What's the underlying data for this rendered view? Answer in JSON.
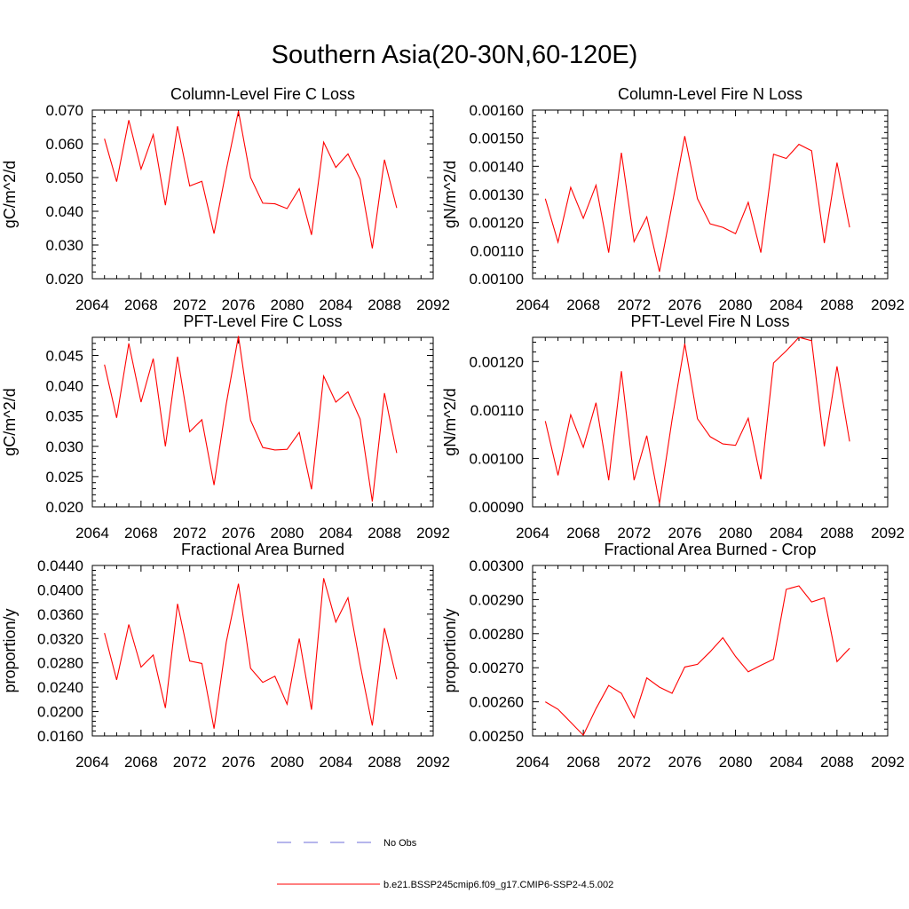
{
  "figure": {
    "title": "Southern Asia(20-30N,60-120E)",
    "legend": [
      {
        "label": "No Obs",
        "color": "#6c6cd9",
        "style": "dashed"
      },
      {
        "label": "b.e21.BSSP245cmip6.f09_g17.CMIP6-SSP2-4.5.002",
        "color": "#ff0000",
        "style": "solid"
      }
    ]
  },
  "chart_data": [
    {
      "type": "line",
      "title": "Column-Level Fire C Loss",
      "ylabel": "gC/m^2/d",
      "xlim": [
        2064,
        2092
      ],
      "xticks": [
        2064,
        2068,
        2072,
        2076,
        2080,
        2084,
        2088,
        2092
      ],
      "ylim": [
        0.02,
        0.07
      ],
      "yticks": [
        "0.020",
        "0.030",
        "0.040",
        "0.050",
        "0.060",
        "0.070"
      ],
      "x": [
        2065,
        2066,
        2067,
        2068,
        2069,
        2070,
        2071,
        2072,
        2073,
        2074,
        2075,
        2076,
        2077,
        2078,
        2079,
        2080,
        2081,
        2082,
        2083,
        2084,
        2085,
        2086,
        2087,
        2088,
        2089
      ],
      "series": [
        {
          "color": "#ff0000",
          "values": [
            0.0615,
            0.0488,
            0.067,
            0.0525,
            0.0627,
            0.0418,
            0.0652,
            0.0475,
            0.0489,
            0.0334,
            0.0523,
            0.0697,
            0.05,
            0.0424,
            0.0422,
            0.0408,
            0.0467,
            0.033,
            0.0605,
            0.053,
            0.057,
            0.0495,
            0.029,
            0.0553,
            0.041
          ]
        }
      ]
    },
    {
      "type": "line",
      "title": "Column-Level Fire N Loss",
      "ylabel": "gN/m^2/d",
      "xlim": [
        2064,
        2092
      ],
      "xticks": [
        2064,
        2068,
        2072,
        2076,
        2080,
        2084,
        2088,
        2092
      ],
      "ylim": [
        0.001,
        0.0016
      ],
      "yticks": [
        "0.00100",
        "0.00110",
        "0.00120",
        "0.00130",
        "0.00140",
        "0.00150",
        "0.00160"
      ],
      "x": [
        2065,
        2066,
        2067,
        2068,
        2069,
        2070,
        2071,
        2072,
        2073,
        2074,
        2075,
        2076,
        2077,
        2078,
        2079,
        2080,
        2081,
        2082,
        2083,
        2084,
        2085,
        2086,
        2087,
        2088,
        2089
      ],
      "series": [
        {
          "color": "#ff0000",
          "values": [
            0.001285,
            0.00113,
            0.001325,
            0.001215,
            0.001333,
            0.001093,
            0.001448,
            0.001132,
            0.00122,
            0.001025,
            0.001262,
            0.001507,
            0.001285,
            0.001195,
            0.001183,
            0.00116,
            0.001272,
            0.001093,
            0.001443,
            0.001428,
            0.001478,
            0.001455,
            0.001127,
            0.001413,
            0.001183
          ]
        }
      ]
    },
    {
      "type": "line",
      "title": "PFT-Level Fire C Loss",
      "ylabel": "gC/m^2/d",
      "xlim": [
        2064,
        2092
      ],
      "xticks": [
        2064,
        2068,
        2072,
        2076,
        2080,
        2084,
        2088,
        2092
      ],
      "ylim": [
        0.02,
        0.048
      ],
      "yticks": [
        "0.020",
        "0.025",
        "0.030",
        "0.035",
        "0.040",
        "0.045"
      ],
      "x": [
        2065,
        2066,
        2067,
        2068,
        2069,
        2070,
        2071,
        2072,
        2073,
        2074,
        2075,
        2076,
        2077,
        2078,
        2079,
        2080,
        2081,
        2082,
        2083,
        2084,
        2085,
        2086,
        2087,
        2088,
        2089
      ],
      "series": [
        {
          "color": "#ff0000",
          "values": [
            0.0435,
            0.0347,
            0.047,
            0.0373,
            0.0445,
            0.03,
            0.0448,
            0.0324,
            0.0344,
            0.0236,
            0.037,
            0.0482,
            0.0343,
            0.0298,
            0.0294,
            0.0295,
            0.0323,
            0.0229,
            0.0416,
            0.0373,
            0.039,
            0.0345,
            0.0209,
            0.0388,
            0.0289
          ]
        }
      ]
    },
    {
      "type": "line",
      "title": "PFT-Level Fire N Loss",
      "ylabel": "gN/m^2/d",
      "xlim": [
        2064,
        2092
      ],
      "xticks": [
        2064,
        2068,
        2072,
        2076,
        2080,
        2084,
        2088,
        2092
      ],
      "ylim": [
        0.0009,
        0.00125
      ],
      "yticks": [
        "0.00090",
        "0.00100",
        "0.00110",
        "0.00120"
      ],
      "x": [
        2065,
        2066,
        2067,
        2068,
        2069,
        2070,
        2071,
        2072,
        2073,
        2074,
        2075,
        2076,
        2077,
        2078,
        2079,
        2080,
        2081,
        2082,
        2083,
        2084,
        2085,
        2086,
        2087,
        2088,
        2089
      ],
      "series": [
        {
          "color": "#ff0000",
          "values": [
            0.001077,
            0.000965,
            0.00109,
            0.001023,
            0.001115,
            0.000955,
            0.00118,
            0.000955,
            0.001047,
            0.000907,
            0.00108,
            0.001237,
            0.001082,
            0.001045,
            0.00103,
            0.001027,
            0.001083,
            0.000957,
            0.001197,
            0.001222,
            0.00125,
            0.001243,
            0.001025,
            0.00119,
            0.001035
          ]
        }
      ]
    },
    {
      "type": "line",
      "title": "Fractional Area Burned",
      "ylabel": "proportion/y",
      "xlim": [
        2064,
        2092
      ],
      "xticks": [
        2064,
        2068,
        2072,
        2076,
        2080,
        2084,
        2088,
        2092
      ],
      "ylim": [
        0.016,
        0.044
      ],
      "yticks": [
        "0.0160",
        "0.0200",
        "0.0240",
        "0.0280",
        "0.0320",
        "0.0360",
        "0.0400",
        "0.0440"
      ],
      "x": [
        2065,
        2066,
        2067,
        2068,
        2069,
        2070,
        2071,
        2072,
        2073,
        2074,
        2075,
        2076,
        2077,
        2078,
        2079,
        2080,
        2081,
        2082,
        2083,
        2084,
        2085,
        2086,
        2087,
        2088,
        2089
      ],
      "series": [
        {
          "color": "#ff0000",
          "values": [
            0.0329,
            0.0252,
            0.0343,
            0.0273,
            0.0293,
            0.0206,
            0.0377,
            0.0283,
            0.0279,
            0.0172,
            0.0314,
            0.041,
            0.0271,
            0.0248,
            0.0258,
            0.0212,
            0.032,
            0.0203,
            0.0419,
            0.0347,
            0.0387,
            0.0277,
            0.0177,
            0.0337,
            0.0253
          ]
        }
      ]
    },
    {
      "type": "line",
      "title": "Fractional Area Burned - Crop",
      "ylabel": "proportion/y",
      "xlim": [
        2064,
        2092
      ],
      "xticks": [
        2064,
        2068,
        2072,
        2076,
        2080,
        2084,
        2088,
        2092
      ],
      "ylim": [
        0.0025,
        0.003
      ],
      "yticks": [
        "0.00250",
        "0.00260",
        "0.00270",
        "0.00280",
        "0.00290",
        "0.00300"
      ],
      "x": [
        2065,
        2066,
        2067,
        2068,
        2069,
        2070,
        2071,
        2072,
        2073,
        2074,
        2075,
        2076,
        2077,
        2078,
        2079,
        2080,
        2081,
        2082,
        2083,
        2084,
        2085,
        2086,
        2087,
        2088,
        2089
      ],
      "series": [
        {
          "color": "#ff0000",
          "values": [
            0.0026,
            0.002578,
            0.00254,
            0.002502,
            0.00258,
            0.002648,
            0.002625,
            0.002553,
            0.00267,
            0.002643,
            0.002625,
            0.002702,
            0.00271,
            0.002747,
            0.002788,
            0.002733,
            0.002688,
            0.002707,
            0.002725,
            0.00293,
            0.00294,
            0.002893,
            0.002905,
            0.002718,
            0.002757
          ]
        }
      ]
    }
  ]
}
